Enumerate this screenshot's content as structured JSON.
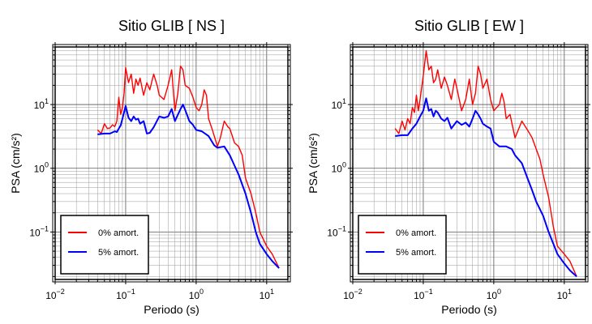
{
  "chart_data": [
    {
      "type": "line",
      "title": "Sitio GLIB [ NS ]",
      "xlabel": "Periodo (s)",
      "ylabel": "PSA (cm/s²)",
      "x_scale": "log",
      "y_scale": "log",
      "xlim": [
        0.01,
        20
      ],
      "ylim": [
        0.018,
        80
      ],
      "x_ticks": [
        {
          "value": 0.01,
          "base": "10",
          "exp": "−2"
        },
        {
          "value": 0.1,
          "base": "10",
          "exp": "−1"
        },
        {
          "value": 1,
          "base": "10",
          "exp": "0"
        },
        {
          "value": 10,
          "base": "10",
          "exp": "1"
        }
      ],
      "y_ticks": [
        {
          "value": 0.1,
          "base": "10",
          "exp": "−1"
        },
        {
          "value": 1,
          "base": "10",
          "exp": "0"
        },
        {
          "value": 10,
          "base": "10",
          "exp": "1"
        }
      ],
      "grid": true,
      "legend_position": "bottom-left",
      "series": [
        {
          "name": "0% amort.",
          "color": "#ff0000",
          "x": [
            0.04,
            0.045,
            0.05,
            0.055,
            0.06,
            0.065,
            0.07,
            0.075,
            0.08,
            0.085,
            0.09,
            0.095,
            0.1,
            0.11,
            0.12,
            0.13,
            0.14,
            0.15,
            0.16,
            0.18,
            0.2,
            0.22,
            0.25,
            0.28,
            0.3,
            0.35,
            0.4,
            0.45,
            0.5,
            0.55,
            0.6,
            0.65,
            0.7,
            0.8,
            0.9,
            1.0,
            1.1,
            1.2,
            1.3,
            1.4,
            1.5,
            1.7,
            2.0,
            2.2,
            2.5,
            2.8,
            3.0,
            3.5,
            4.0,
            4.5,
            5.0,
            6.0,
            7.0,
            8.0,
            10.0,
            12.0,
            15.0
          ],
          "y": [
            4.0,
            3.5,
            5.0,
            4.2,
            4.3,
            4.8,
            4.5,
            5.5,
            13.0,
            7.0,
            9.0,
            15.0,
            38.0,
            22.0,
            30.0,
            15.0,
            25.0,
            20.0,
            26.0,
            14.0,
            22.0,
            17.0,
            30.0,
            20.0,
            14.0,
            12.0,
            20.0,
            35.0,
            8.0,
            15.0,
            40.0,
            35.0,
            20.0,
            18.0,
            13.0,
            9.0,
            8.0,
            10.0,
            17.0,
            14.0,
            6.0,
            4.0,
            2.2,
            3.0,
            5.5,
            4.5,
            4.2,
            2.5,
            2.2,
            1.6,
            0.7,
            0.4,
            0.2,
            0.1,
            0.06,
            0.045,
            0.027
          ]
        },
        {
          "name": "5% amort.",
          "color": "#0000ff",
          "x": [
            0.04,
            0.05,
            0.06,
            0.07,
            0.075,
            0.08,
            0.085,
            0.09,
            0.1,
            0.11,
            0.12,
            0.13,
            0.14,
            0.15,
            0.16,
            0.18,
            0.2,
            0.22,
            0.25,
            0.3,
            0.35,
            0.4,
            0.45,
            0.5,
            0.6,
            0.65,
            0.7,
            0.8,
            0.9,
            1.0,
            1.2,
            1.5,
            1.8,
            2.0,
            2.5,
            3.0,
            3.5,
            4.0,
            5.0,
            6.0,
            7.0,
            8.0,
            10.0,
            12.0,
            15.0
          ],
          "y": [
            3.4,
            3.5,
            3.5,
            3.8,
            3.7,
            4.2,
            4.7,
            6.0,
            9.5,
            6.2,
            5.5,
            6.5,
            5.8,
            6.0,
            5.0,
            5.5,
            3.5,
            3.6,
            4.4,
            6.5,
            6.2,
            6.5,
            8.5,
            5.5,
            8.5,
            10.0,
            8.2,
            5.5,
            4.8,
            4.0,
            3.8,
            3.2,
            2.3,
            2.1,
            2.2,
            1.6,
            1.1,
            0.8,
            0.4,
            0.2,
            0.1,
            0.065,
            0.045,
            0.035,
            0.027
          ]
        }
      ]
    },
    {
      "type": "line",
      "title": "Sitio GLIB [ EW ]",
      "xlabel": "Periodo (s)",
      "ylabel": "PSA (cm/s²)",
      "x_scale": "log",
      "y_scale": "log",
      "xlim": [
        0.01,
        20
      ],
      "ylim": [
        0.018,
        80
      ],
      "x_ticks": [
        {
          "value": 0.01,
          "base": "10",
          "exp": "−2"
        },
        {
          "value": 0.1,
          "base": "10",
          "exp": "−1"
        },
        {
          "value": 1,
          "base": "10",
          "exp": "0"
        },
        {
          "value": 10,
          "base": "10",
          "exp": "1"
        }
      ],
      "y_ticks": [
        {
          "value": 0.1,
          "base": "10",
          "exp": "−1"
        },
        {
          "value": 1,
          "base": "10",
          "exp": "0"
        },
        {
          "value": 10,
          "base": "10",
          "exp": "1"
        }
      ],
      "grid": true,
      "legend_position": "bottom-left",
      "series": [
        {
          "name": "0% amort.",
          "color": "#ff0000",
          "x": [
            0.04,
            0.045,
            0.05,
            0.055,
            0.06,
            0.065,
            0.07,
            0.075,
            0.08,
            0.085,
            0.09,
            0.1,
            0.11,
            0.12,
            0.13,
            0.14,
            0.15,
            0.16,
            0.18,
            0.2,
            0.22,
            0.25,
            0.28,
            0.3,
            0.35,
            0.4,
            0.45,
            0.5,
            0.55,
            0.6,
            0.65,
            0.7,
            0.8,
            0.9,
            1.0,
            1.1,
            1.2,
            1.3,
            1.4,
            1.5,
            1.7,
            2.0,
            2.5,
            3.0,
            3.5,
            4.0,
            4.5,
            5.0,
            6.0,
            7.0,
            8.0,
            10.0,
            12.0,
            15.0
          ],
          "y": [
            4.2,
            3.5,
            5.5,
            4.0,
            6.0,
            5.0,
            9.0,
            7.5,
            14.0,
            8.0,
            12.0,
            28.0,
            70.0,
            35.0,
            40.0,
            22.0,
            25.0,
            35.0,
            18.0,
            27.0,
            20.0,
            12.0,
            25.0,
            18.0,
            8.0,
            12.0,
            25.0,
            10.0,
            15.0,
            40.0,
            30.0,
            18.0,
            25.0,
            12.0,
            8.0,
            9.0,
            10.0,
            15.0,
            11.0,
            6.0,
            7.0,
            3.0,
            5.5,
            4.0,
            3.0,
            2.0,
            1.4,
            0.8,
            0.35,
            0.12,
            0.06,
            0.045,
            0.035,
            0.02
          ]
        },
        {
          "name": "5% amort.",
          "color": "#0000ff",
          "x": [
            0.04,
            0.05,
            0.06,
            0.07,
            0.08,
            0.09,
            0.1,
            0.11,
            0.12,
            0.13,
            0.14,
            0.15,
            0.16,
            0.18,
            0.2,
            0.22,
            0.25,
            0.3,
            0.35,
            0.4,
            0.45,
            0.5,
            0.55,
            0.6,
            0.65,
            0.7,
            0.8,
            0.9,
            1.0,
            1.2,
            1.5,
            1.8,
            2.0,
            2.5,
            3.0,
            3.5,
            4.0,
            5.0,
            6.0,
            7.0,
            8.0,
            10.0,
            12.0,
            15.0
          ],
          "y": [
            3.2,
            3.3,
            3.3,
            4.2,
            5.0,
            6.5,
            8.0,
            12.5,
            8.0,
            8.5,
            6.5,
            8.0,
            7.5,
            6.0,
            5.5,
            6.2,
            4.2,
            5.5,
            4.8,
            5.2,
            4.5,
            6.0,
            8.0,
            7.0,
            6.0,
            5.0,
            4.5,
            4.2,
            2.6,
            2.2,
            2.2,
            2.0,
            1.6,
            1.2,
            0.7,
            0.45,
            0.3,
            0.18,
            0.1,
            0.065,
            0.045,
            0.032,
            0.025,
            0.02
          ]
        }
      ]
    }
  ]
}
